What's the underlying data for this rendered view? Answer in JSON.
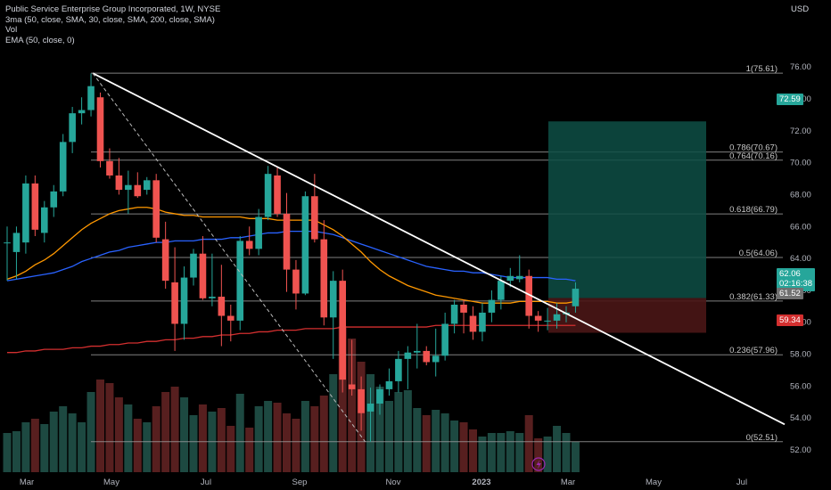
{
  "legend": {
    "title": "Public Service Enterprise Group Incorporated, 1W, NYSE",
    "line2": "3ma (50, close, SMA, 30, close, SMA, 200, close, SMA)",
    "line3": "Vol",
    "line4": "EMA (50, close, 0)"
  },
  "currency": "USD",
  "badges": {
    "target": "72.59",
    "price": "62.06",
    "countdown": "02:16:38",
    "entry": "61.52",
    "stop": "59.34"
  },
  "colors": {
    "background": "#000000",
    "up": "#26a69a",
    "down": "#ef5350",
    "sma50": "#ff9800",
    "sma30": "#2962ff",
    "sma200": "#d32f2f",
    "trendline": "#ffffff",
    "fib": "#9e9e9e",
    "target_zone": "#0e4f45",
    "stop_zone": "#4a1616"
  },
  "chart_data": {
    "type": "candlestick",
    "title": "Public Service Enterprise Group Incorporated, 1W, NYSE",
    "y_axis_label": "USD",
    "ylim": [
      50.6,
      80.2
    ],
    "y_ticks": [
      "52.00",
      "54.00",
      "56.00",
      "58.00",
      "60.00",
      "62.00",
      "64.00",
      "66.00",
      "68.00",
      "70.00",
      "72.00",
      "74.00",
      "76.00"
    ],
    "x_ticks": [
      "Mar",
      "May",
      "Jul",
      "Sep",
      "Nov",
      "2023",
      "Mar",
      "May",
      "Jul"
    ],
    "candles": [
      {
        "o": 65,
        "h": 66,
        "l": 62.6,
        "c": 65,
        "v": 0.22
      },
      {
        "o": 64.4,
        "h": 66,
        "l": 62.7,
        "c": 65.6,
        "v": 0.23
      },
      {
        "o": 65,
        "h": 69.2,
        "l": 64.3,
        "c": 68.7,
        "v": 0.28
      },
      {
        "o": 68.7,
        "h": 69.2,
        "l": 65.4,
        "c": 65.8,
        "v": 0.3
      },
      {
        "o": 65.6,
        "h": 67.6,
        "l": 65,
        "c": 67.2,
        "v": 0.27
      },
      {
        "o": 67.2,
        "h": 68.6,
        "l": 66.6,
        "c": 68.2,
        "v": 0.34
      },
      {
        "o": 68.2,
        "h": 71.8,
        "l": 67.9,
        "c": 71.3,
        "v": 0.37
      },
      {
        "o": 71.3,
        "h": 73.5,
        "l": 70.6,
        "c": 73.1,
        "v": 0.33
      },
      {
        "o": 73.1,
        "h": 74.1,
        "l": 72.4,
        "c": 73.3,
        "v": 0.28
      },
      {
        "o": 73.3,
        "h": 75.6,
        "l": 72.9,
        "c": 74.8,
        "v": 0.45
      },
      {
        "o": 74.1,
        "h": 74.4,
        "l": 69.7,
        "c": 70.1,
        "v": 0.52
      },
      {
        "o": 70.1,
        "h": 70.9,
        "l": 69,
        "c": 69.2,
        "v": 0.5
      },
      {
        "o": 69.2,
        "h": 70.3,
        "l": 68,
        "c": 68.3,
        "v": 0.42
      },
      {
        "o": 68.3,
        "h": 69.5,
        "l": 66.8,
        "c": 68.6,
        "v": 0.38
      },
      {
        "o": 68.6,
        "h": 69.4,
        "l": 67.8,
        "c": 67.9,
        "v": 0.3
      },
      {
        "o": 68.3,
        "h": 69.1,
        "l": 68,
        "c": 68.9,
        "v": 0.28
      },
      {
        "o": 68.9,
        "h": 69.3,
        "l": 65,
        "c": 65.3,
        "v": 0.37
      },
      {
        "o": 65.2,
        "h": 66.3,
        "l": 62.1,
        "c": 62.6,
        "v": 0.45
      },
      {
        "o": 62.5,
        "h": 64.7,
        "l": 58.2,
        "c": 59.9,
        "v": 0.48
      },
      {
        "o": 59.9,
        "h": 63.5,
        "l": 58.9,
        "c": 62.8,
        "v": 0.42
      },
      {
        "o": 62.8,
        "h": 64.6,
        "l": 62.3,
        "c": 64.3,
        "v": 0.32
      },
      {
        "o": 64.3,
        "h": 65.4,
        "l": 61.4,
        "c": 61.5,
        "v": 0.38
      },
      {
        "o": 61.5,
        "h": 64.3,
        "l": 61,
        "c": 61.6,
        "v": 0.34
      },
      {
        "o": 61.6,
        "h": 63.6,
        "l": 58.5,
        "c": 60.4,
        "v": 0.36
      },
      {
        "o": 60.4,
        "h": 61.1,
        "l": 58.8,
        "c": 60.1,
        "v": 0.26
      },
      {
        "o": 60.1,
        "h": 65.4,
        "l": 59.5,
        "c": 65.1,
        "v": 0.44
      },
      {
        "o": 65.1,
        "h": 66,
        "l": 64.2,
        "c": 64.6,
        "v": 0.25
      },
      {
        "o": 64.6,
        "h": 67.1,
        "l": 64.2,
        "c": 66.6,
        "v": 0.37
      },
      {
        "o": 66.6,
        "h": 69.8,
        "l": 66.4,
        "c": 69.3,
        "v": 0.4
      },
      {
        "o": 69.2,
        "h": 69.7,
        "l": 66.6,
        "c": 66.8,
        "v": 0.39
      },
      {
        "o": 66.8,
        "h": 68.1,
        "l": 61.9,
        "c": 63.3,
        "v": 0.33
      },
      {
        "o": 63.3,
        "h": 63.9,
        "l": 60.8,
        "c": 61.8,
        "v": 0.3
      },
      {
        "o": 61.8,
        "h": 68.2,
        "l": 61.7,
        "c": 67.9,
        "v": 0.4
      },
      {
        "o": 67.9,
        "h": 69.3,
        "l": 65,
        "c": 65.2,
        "v": 0.37
      },
      {
        "o": 65.2,
        "h": 66.4,
        "l": 59.8,
        "c": 60.3,
        "v": 0.43
      },
      {
        "o": 60.3,
        "h": 63.2,
        "l": 57.7,
        "c": 62.6,
        "v": 0.55
      },
      {
        "o": 62.6,
        "h": 63.3,
        "l": 55.6,
        "c": 56.4,
        "v": 0.82
      },
      {
        "o": 56.1,
        "h": 58.9,
        "l": 55.4,
        "c": 55.8,
        "v": 0.75
      },
      {
        "o": 55.8,
        "h": 56.6,
        "l": 53.2,
        "c": 54.3,
        "v": 0.62
      },
      {
        "o": 54.4,
        "h": 55.9,
        "l": 52.5,
        "c": 54.9,
        "v": 0.55
      },
      {
        "o": 54.9,
        "h": 56.1,
        "l": 54.2,
        "c": 55.8,
        "v": 0.48
      },
      {
        "o": 55.8,
        "h": 57.1,
        "l": 55.4,
        "c": 56.3,
        "v": 0.4
      },
      {
        "o": 56.3,
        "h": 58.2,
        "l": 55.6,
        "c": 57.7,
        "v": 0.45
      },
      {
        "o": 57.7,
        "h": 58.5,
        "l": 55.8,
        "c": 58.1,
        "v": 0.46
      },
      {
        "o": 58.1,
        "h": 59.9,
        "l": 57.1,
        "c": 58.2,
        "v": 0.36
      },
      {
        "o": 58.2,
        "h": 58.5,
        "l": 57.3,
        "c": 57.5,
        "v": 0.32
      },
      {
        "o": 57.5,
        "h": 59.6,
        "l": 56.6,
        "c": 57.9,
        "v": 0.35
      },
      {
        "o": 57.9,
        "h": 60.6,
        "l": 57.6,
        "c": 59.9,
        "v": 0.33
      },
      {
        "o": 59.9,
        "h": 61.4,
        "l": 59.3,
        "c": 61.1,
        "v": 0.29
      },
      {
        "o": 61.1,
        "h": 61.4,
        "l": 59.3,
        "c": 60.6,
        "v": 0.28
      },
      {
        "o": 60.4,
        "h": 61,
        "l": 58.9,
        "c": 59.4,
        "v": 0.24
      },
      {
        "o": 59.4,
        "h": 61.2,
        "l": 58.8,
        "c": 60.6,
        "v": 0.2
      },
      {
        "o": 60.6,
        "h": 62,
        "l": 60,
        "c": 61.4,
        "v": 0.22
      },
      {
        "o": 61.4,
        "h": 62.9,
        "l": 60.8,
        "c": 62.6,
        "v": 0.22
      },
      {
        "o": 62.6,
        "h": 63.4,
        "l": 62.2,
        "c": 62.9,
        "v": 0.23
      },
      {
        "o": 62.7,
        "h": 64.2,
        "l": 62.5,
        "c": 62.9,
        "v": 0.22
      },
      {
        "o": 62.9,
        "h": 63.3,
        "l": 59.6,
        "c": 60.4,
        "v": 0.32
      },
      {
        "o": 60.4,
        "h": 60.7,
        "l": 59.4,
        "c": 60.1,
        "v": 0.19
      },
      {
        "o": 60.1,
        "h": 60.9,
        "l": 59.5,
        "c": 60.1,
        "v": 0.2
      },
      {
        "o": 60.1,
        "h": 61.2,
        "l": 59.6,
        "c": 60.5,
        "v": 0.26
      },
      {
        "o": 60.5,
        "h": 61,
        "l": 60,
        "c": 60.6,
        "v": 0.22
      },
      {
        "o": 61,
        "h": 62.5,
        "l": 60.6,
        "c": 62.1,
        "v": 0.17
      }
    ],
    "sma50": [
      62.7,
      62.9,
      63.2,
      63.6,
      63.9,
      64.3,
      64.8,
      65.3,
      65.8,
      66.2,
      66.5,
      66.8,
      67,
      67.1,
      67.2,
      67.2,
      67.1,
      66.9,
      66.8,
      66.7,
      66.7,
      66.6,
      66.6,
      66.6,
      66.6,
      66.6,
      66.5,
      66.5,
      66.5,
      66.4,
      66.4,
      66.4,
      66.4,
      66.4,
      66.1,
      65.8,
      65.4,
      64.9,
      64.4,
      63.8,
      63.3,
      62.9,
      62.6,
      62.3,
      62.1,
      61.9,
      61.7,
      61.6,
      61.5,
      61.4,
      61.3,
      61.2,
      61.2,
      61.2,
      61.2,
      61.3,
      61.3,
      61.3,
      61.3,
      61.2,
      61.2,
      61.3
    ],
    "sma30": [
      62.6,
      62.7,
      62.8,
      62.9,
      63,
      63.1,
      63.3,
      63.5,
      63.8,
      64,
      64.2,
      64.4,
      64.5,
      64.7,
      64.8,
      64.9,
      65,
      65,
      65.1,
      65.1,
      65.1,
      65.2,
      65.2,
      65.2,
      65.3,
      65.3,
      65.4,
      65.5,
      65.6,
      65.6,
      65.7,
      65.7,
      65.7,
      65.7,
      65.6,
      65.5,
      65.3,
      65.1,
      64.9,
      64.7,
      64.5,
      64.3,
      64.1,
      63.9,
      63.7,
      63.5,
      63.4,
      63.3,
      63.2,
      63.2,
      63.1,
      63.1,
      63,
      62.9,
      62.8,
      62.8,
      62.8,
      62.8,
      62.8,
      62.7,
      62.7,
      62.6
    ],
    "sma200": [
      58.1,
      58.1,
      58.2,
      58.2,
      58.3,
      58.3,
      58.3,
      58.4,
      58.4,
      58.5,
      58.5,
      58.6,
      58.6,
      58.7,
      58.7,
      58.8,
      58.8,
      58.9,
      58.9,
      59,
      59,
      59.1,
      59.1,
      59.2,
      59.2,
      59.3,
      59.3,
      59.4,
      59.4,
      59.5,
      59.5,
      59.5,
      59.6,
      59.6,
      59.6,
      59.6,
      59.7,
      59.7,
      59.7,
      59.7,
      59.7,
      59.7,
      59.7,
      59.7,
      59.7,
      59.7,
      59.8,
      59.8,
      59.8,
      59.8,
      59.8,
      59.8,
      59.8,
      59.8,
      59.8,
      59.8,
      59.8,
      59.8,
      59.8,
      59.8,
      59.8,
      59.8
    ],
    "fibonacci": [
      {
        "level": "1",
        "price": 75.61,
        "label": "1(75.61)"
      },
      {
        "level": "0.786",
        "price": 70.67,
        "label": "0.786(70.67)"
      },
      {
        "level": "0.764",
        "price": 70.16,
        "label": "0.764(70.16)"
      },
      {
        "level": "0.618",
        "price": 66.79,
        "label": "0.618(66.79)"
      },
      {
        "level": "0.5",
        "price": 64.06,
        "label": "0.5(64.06)"
      },
      {
        "level": "0.382",
        "price": 61.33,
        "label": "0.382(61.33)"
      },
      {
        "level": "0.236",
        "price": 57.96,
        "label": "0.236(57.96)"
      },
      {
        "level": "0",
        "price": 52.51,
        "label": "0(52.51)"
      }
    ],
    "trendline": {
      "from_price": 75.61,
      "to_price": 53.6
    },
    "position": {
      "target": 72.59,
      "entry": 61.52,
      "stop": 59.34
    }
  }
}
